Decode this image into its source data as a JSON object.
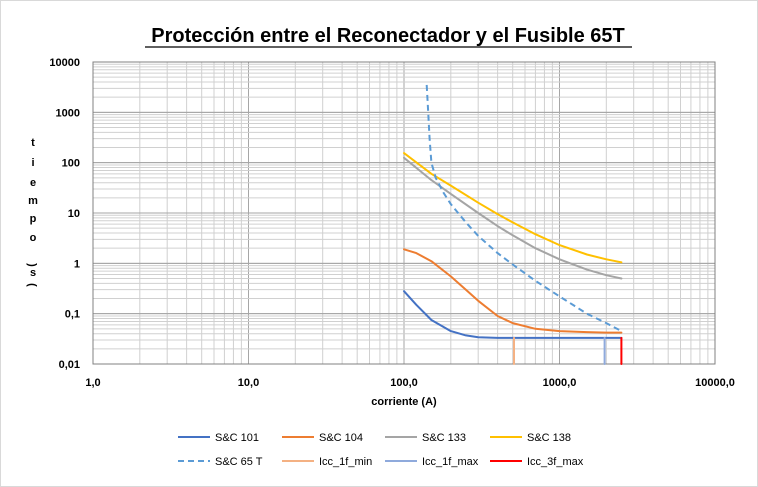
{
  "chart_data": {
    "type": "line",
    "title": "Protección entre el Reconectador y el Fusible 65T",
    "xlabel": "corriente (A)",
    "ylabel_chars": [
      "t",
      "i",
      "e",
      "m",
      "p",
      "o",
      "",
      "(",
      "s",
      ")"
    ],
    "x_scale": "log",
    "y_scale": "log",
    "xlim": [
      1,
      10000
    ],
    "ylim": [
      0.01,
      10000
    ],
    "x_ticks": [
      1,
      10,
      100,
      1000,
      10000
    ],
    "x_tick_labels": [
      "1,0",
      "10,0",
      "100,0",
      "1000,0",
      "10000,0"
    ],
    "y_ticks": [
      0.01,
      0.1,
      1,
      10,
      100,
      1000,
      10000
    ],
    "y_tick_labels": [
      "0,01",
      "0,1",
      "1",
      "10",
      "100",
      "1000",
      "10000"
    ],
    "grid": true,
    "legend_position": "bottom",
    "series": [
      {
        "name": "S&C 101",
        "color": "#4472c4",
        "dash": "solid",
        "x": [
          100,
          120,
          150,
          200,
          250,
          300,
          400,
          500,
          700,
          1000,
          1500,
          2000,
          2500
        ],
        "y": [
          0.28,
          0.15,
          0.075,
          0.045,
          0.037,
          0.034,
          0.033,
          0.033,
          0.033,
          0.033,
          0.033,
          0.033,
          0.033
        ]
      },
      {
        "name": "S&C 104",
        "color": "#ed7d31",
        "dash": "solid",
        "x": [
          100,
          120,
          150,
          200,
          250,
          300,
          400,
          500,
          700,
          1000,
          1500,
          2000,
          2500
        ],
        "y": [
          1.9,
          1.6,
          1.1,
          0.55,
          0.3,
          0.18,
          0.09,
          0.065,
          0.05,
          0.045,
          0.043,
          0.042,
          0.042
        ]
      },
      {
        "name": "S&C 133",
        "color": "#a5a5a5",
        "dash": "solid",
        "x": [
          100,
          150,
          200,
          300,
          400,
          500,
          700,
          1000,
          1500,
          2000,
          2500
        ],
        "y": [
          125,
          45,
          24,
          10,
          5.5,
          3.6,
          2,
          1.2,
          0.75,
          0.58,
          0.5
        ]
      },
      {
        "name": "S&C 138",
        "color": "#ffc000",
        "dash": "solid",
        "x": [
          100,
          150,
          200,
          300,
          400,
          500,
          700,
          1000,
          1500,
          2000,
          2500
        ],
        "y": [
          155,
          60,
          35,
          16,
          9.5,
          6.5,
          3.8,
          2.3,
          1.5,
          1.2,
          1.05
        ]
      },
      {
        "name": "S&C 65 T",
        "color": "#5b9bd5",
        "dash": "dashed",
        "x": [
          140,
          143,
          146,
          150,
          160,
          180,
          200,
          250,
          300,
          400,
          500,
          700,
          1000,
          1500,
          2000,
          2500
        ],
        "y": [
          3500,
          1000,
          300,
          100,
          50,
          25,
          15,
          6.5,
          3.5,
          1.6,
          0.95,
          0.45,
          0.22,
          0.1,
          0.065,
          0.045
        ]
      },
      {
        "name": "Icc_1f_min",
        "color": "#f4b183",
        "dash": "solid",
        "x": [
          510,
          510
        ],
        "y": [
          0.01,
          0.033
        ]
      },
      {
        "name": "Icc_1f_max",
        "color": "#8faadc",
        "dash": "solid",
        "x": [
          1950,
          1950
        ],
        "y": [
          0.01,
          0.033
        ]
      },
      {
        "name": "Icc_3f_max",
        "color": "#ff0000",
        "dash": "solid",
        "x": [
          2500,
          2500
        ],
        "y": [
          0.01,
          0.033
        ]
      }
    ]
  }
}
